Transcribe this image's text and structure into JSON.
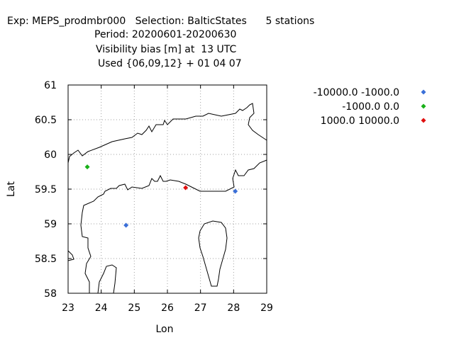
{
  "title_lines": [
    "Exp: MEPS_prodmbr000   Selection: BalticStates      5 stations",
    "Period: 20200601-20200630",
    "Visibility bias [m] at  13 UTC",
    "Used {06,09,12} + 01 04 07"
  ],
  "chart_data": {
    "type": "scatter",
    "xlabel": "Lon",
    "ylabel": "Lat",
    "xlim": [
      23,
      29
    ],
    "ylim": [
      58,
      61
    ],
    "xticks": [
      "23",
      "24",
      "25",
      "26",
      "27",
      "28",
      "29"
    ],
    "yticks": [
      "58",
      "58.5",
      "59",
      "59.5",
      "60",
      "60.5",
      "61"
    ],
    "grid": true,
    "legend_position": "top-right, outside plot",
    "series": [
      {
        "name": "-10000.0 -1000.0",
        "color": "#3a6fd8",
        "points": [
          [
            24.75,
            58.98
          ],
          [
            28.05,
            59.47
          ]
        ]
      },
      {
        "name": "-1000.0 0.0",
        "color": "#19b019",
        "points": [
          [
            23.58,
            59.82
          ]
        ]
      },
      {
        "name": "1000.0 10000.0",
        "color": "#e01010",
        "points": [
          [
            26.55,
            59.52
          ]
        ]
      }
    ]
  }
}
